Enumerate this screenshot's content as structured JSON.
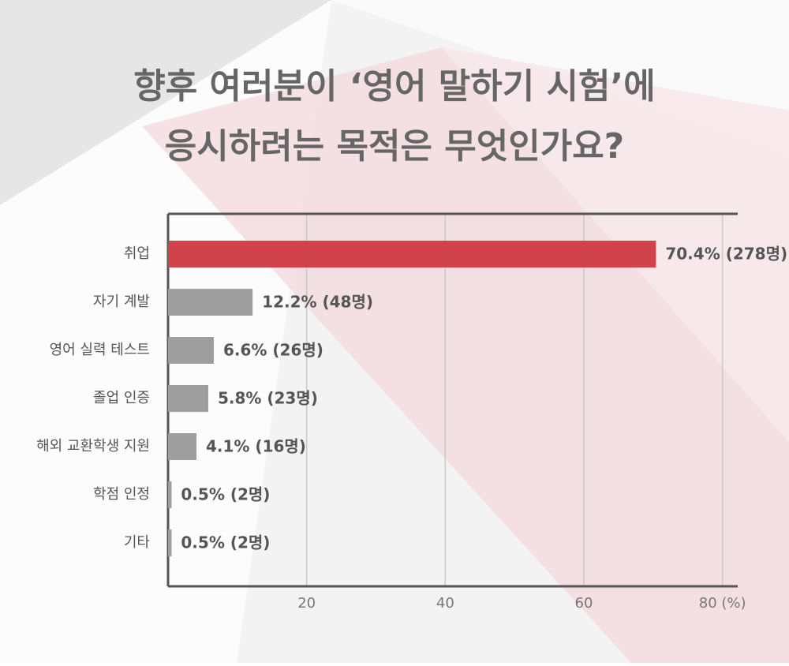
{
  "chart_data": {
    "type": "hbar",
    "title": [
      "향후 여러분이 ‘영어 말하기 시험’에",
      "응시하려는 목적은 무엇인가요?"
    ],
    "categories": [
      "취업",
      "자기 계발",
      "영어 실력 테스트",
      "졸업 인증",
      "해외 교환학생 지원",
      "학점 인정",
      "기타"
    ],
    "values": [
      70.4,
      12.2,
      6.6,
      5.8,
      4.1,
      0.5,
      0.5
    ],
    "value_labels": [
      "70.4% (278명)",
      "12.2% (48명)",
      "6.6% (26명)",
      "5.8% (23명)",
      "4.1% (16명)",
      "0.5% (2명)",
      "0.5% (2명)"
    ],
    "colors": [
      "#d0434b",
      "#9e9e9e",
      "#9e9e9e",
      "#9e9e9e",
      "#9e9e9e",
      "#9e9e9e",
      "#9e9e9e"
    ],
    "xlim": [
      0,
      82.2
    ],
    "xticks": [
      20,
      40,
      60,
      {
        "value": 80,
        "label": "80 (%)"
      }
    ],
    "grid": true
  }
}
